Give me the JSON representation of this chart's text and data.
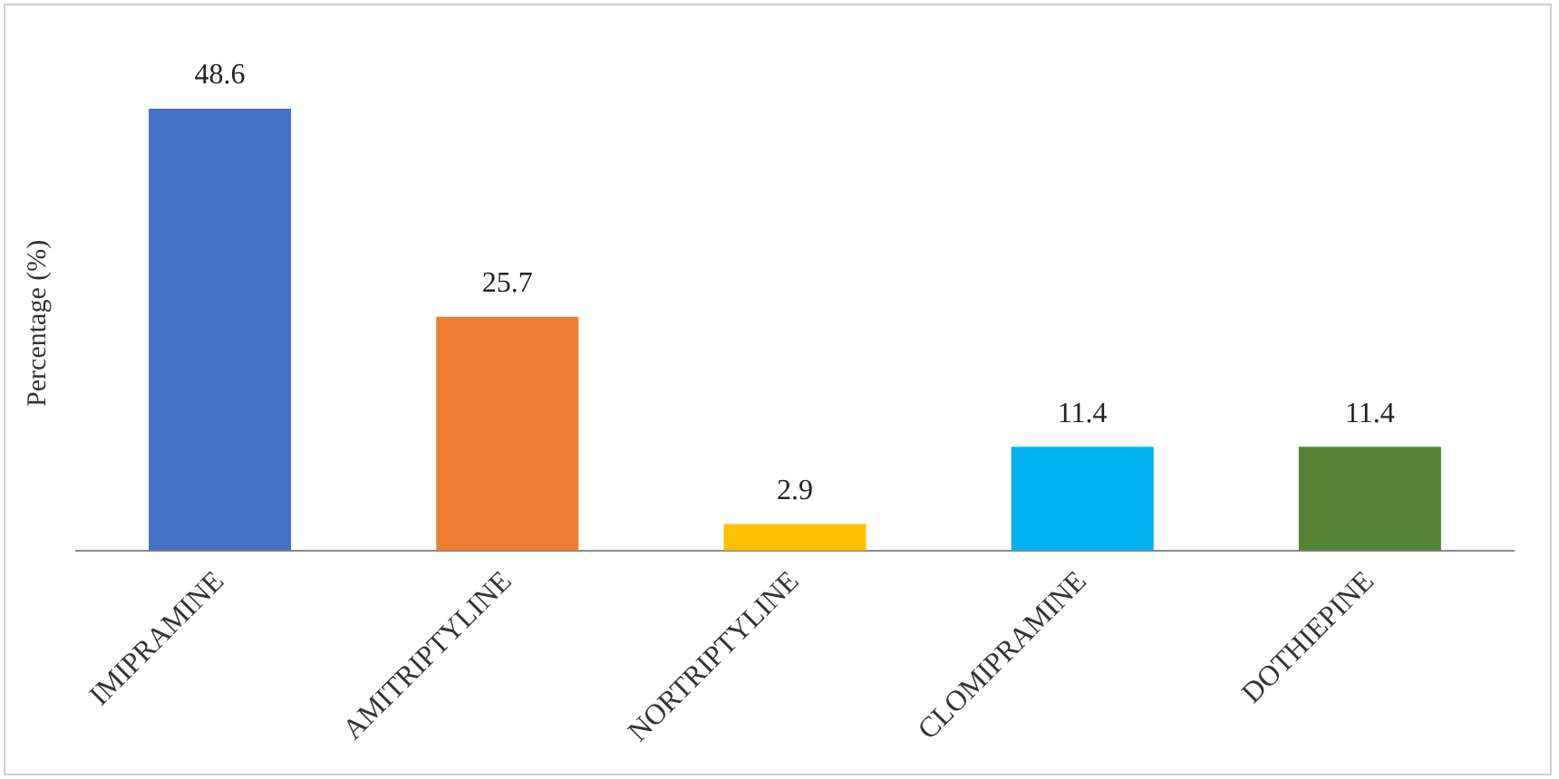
{
  "chart_data": {
    "type": "bar",
    "ylabel": "Percentage (%)",
    "categories": [
      "IMIPRAMINE",
      "AMITRIPTYLINE",
      "NORTRIPTYLINE",
      "CLOMIPRAMINE",
      "DOTHIEPINE"
    ],
    "values": [
      48.6,
      25.7,
      2.9,
      11.4,
      11.4
    ],
    "colors": [
      "#4472c4",
      "#ed7d31",
      "#ffc000",
      "#00b0f0",
      "#548235"
    ],
    "data_labels": true,
    "grid": false,
    "legend": false
  }
}
